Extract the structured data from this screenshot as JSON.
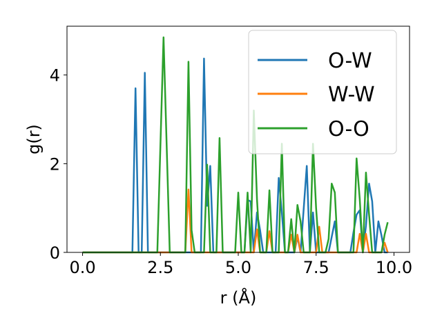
{
  "chart_data": {
    "type": "line",
    "title": "",
    "xlabel": "r (Å)",
    "ylabel": "g(r)",
    "xlim": [
      -0.5,
      10.5
    ],
    "ylim": [
      0,
      5.1
    ],
    "xticks": [
      0.0,
      2.5,
      5.0,
      7.5,
      10.0
    ],
    "xtick_labels": [
      "0.0",
      "2.5",
      "5.0",
      "7.5",
      "10.0"
    ],
    "yticks": [
      0,
      2,
      4
    ],
    "ytick_labels": [
      "0",
      "2",
      "4"
    ],
    "grid": false,
    "legend_position": "top-right",
    "series": [
      {
        "name": "O-W",
        "color": "#1f77b4",
        "points": [
          [
            0.0,
            0
          ],
          [
            1.6,
            0
          ],
          [
            1.7,
            3.7
          ],
          [
            1.8,
            0
          ],
          [
            1.9,
            0
          ],
          [
            2.0,
            4.05
          ],
          [
            2.1,
            0
          ],
          [
            3.8,
            0
          ],
          [
            3.9,
            4.37
          ],
          [
            4.0,
            1.05
          ],
          [
            4.1,
            1.95
          ],
          [
            4.2,
            0
          ],
          [
            5.2,
            0
          ],
          [
            5.3,
            1.18
          ],
          [
            5.4,
            1.15
          ],
          [
            5.5,
            0
          ],
          [
            5.6,
            0.9
          ],
          [
            5.7,
            0.5
          ],
          [
            5.8,
            0
          ],
          [
            6.2,
            0
          ],
          [
            6.3,
            1.68
          ],
          [
            6.4,
            0.9
          ],
          [
            6.5,
            0
          ],
          [
            6.8,
            0
          ],
          [
            6.9,
            0.35
          ],
          [
            7.0,
            0
          ],
          [
            7.2,
            1.95
          ],
          [
            7.3,
            0
          ],
          [
            7.4,
            0.9
          ],
          [
            7.5,
            0
          ],
          [
            7.9,
            0
          ],
          [
            8.0,
            0.35
          ],
          [
            8.1,
            0.7
          ],
          [
            8.2,
            0
          ],
          [
            8.6,
            0
          ],
          [
            8.7,
            0.45
          ],
          [
            8.8,
            0.85
          ],
          [
            8.9,
            0.95
          ],
          [
            9.0,
            0
          ],
          [
            9.1,
            0.6
          ],
          [
            9.2,
            1.55
          ],
          [
            9.3,
            1.15
          ],
          [
            9.4,
            0
          ],
          [
            9.5,
            0.7
          ],
          [
            9.6,
            0.38
          ],
          [
            9.7,
            0
          ],
          [
            9.8,
            0
          ]
        ]
      },
      {
        "name": "W-W",
        "color": "#ff7f0e",
        "points": [
          [
            0.0,
            0
          ],
          [
            3.3,
            0
          ],
          [
            3.4,
            1.42
          ],
          [
            3.5,
            0
          ],
          [
            5.5,
            0
          ],
          [
            5.6,
            0.52
          ],
          [
            5.7,
            0
          ],
          [
            5.9,
            0
          ],
          [
            6.0,
            0.48
          ],
          [
            6.1,
            0
          ],
          [
            6.6,
            0
          ],
          [
            6.7,
            0.4
          ],
          [
            6.8,
            0
          ],
          [
            6.9,
            0.4
          ],
          [
            7.0,
            0
          ],
          [
            7.5,
            0
          ],
          [
            7.6,
            0.58
          ],
          [
            7.7,
            0
          ],
          [
            8.8,
            0
          ],
          [
            8.9,
            0.42
          ],
          [
            9.0,
            0
          ],
          [
            9.1,
            0.42
          ],
          [
            9.2,
            0
          ],
          [
            9.6,
            0
          ],
          [
            9.7,
            0.22
          ],
          [
            9.8,
            0
          ]
        ]
      },
      {
        "name": "O-O",
        "color": "#2ca02c",
        "points": [
          [
            0.0,
            0
          ],
          [
            2.4,
            0
          ],
          [
            2.6,
            4.85
          ],
          [
            2.8,
            0
          ],
          [
            3.3,
            0
          ],
          [
            3.4,
            4.3
          ],
          [
            3.5,
            0.5
          ],
          [
            3.6,
            0
          ],
          [
            3.9,
            0
          ],
          [
            4.0,
            1.98
          ],
          [
            4.1,
            0
          ],
          [
            4.3,
            0
          ],
          [
            4.4,
            2.58
          ],
          [
            4.5,
            0
          ],
          [
            4.9,
            0
          ],
          [
            5.0,
            1.35
          ],
          [
            5.1,
            0
          ],
          [
            5.2,
            0
          ],
          [
            5.3,
            1.35
          ],
          [
            5.4,
            0
          ],
          [
            5.5,
            3.2
          ],
          [
            5.6,
            1.2
          ],
          [
            5.7,
            0
          ],
          [
            5.9,
            0
          ],
          [
            6.0,
            1.4
          ],
          [
            6.1,
            0
          ],
          [
            6.3,
            0
          ],
          [
            6.4,
            2.45
          ],
          [
            6.5,
            0
          ],
          [
            6.6,
            0
          ],
          [
            6.7,
            0.75
          ],
          [
            6.8,
            0
          ],
          [
            6.9,
            1.07
          ],
          [
            7.0,
            0.7
          ],
          [
            7.1,
            0
          ],
          [
            7.3,
            0
          ],
          [
            7.4,
            2.45
          ],
          [
            7.5,
            1.0
          ],
          [
            7.6,
            0
          ],
          [
            7.8,
            0
          ],
          [
            7.9,
            0.3
          ],
          [
            8.0,
            1.55
          ],
          [
            8.1,
            1.35
          ],
          [
            8.2,
            0
          ],
          [
            8.7,
            0
          ],
          [
            8.8,
            2.12
          ],
          [
            8.9,
            1.2
          ],
          [
            9.0,
            0
          ],
          [
            9.1,
            1.8
          ],
          [
            9.2,
            0.85
          ],
          [
            9.3,
            0
          ],
          [
            9.6,
            0
          ],
          [
            9.7,
            0.4
          ],
          [
            9.8,
            0.68
          ]
        ]
      }
    ]
  }
}
